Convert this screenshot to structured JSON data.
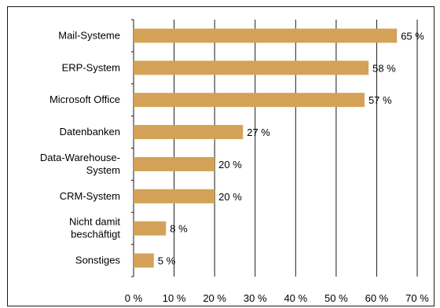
{
  "chart_data": {
    "type": "bar",
    "orientation": "horizontal",
    "categories": [
      [
        "Mail-Systeme"
      ],
      [
        "ERP-System"
      ],
      [
        "Microsoft Office"
      ],
      [
        "Datenbanken"
      ],
      [
        "Data-Warehouse-",
        "System"
      ],
      [
        "CRM-System"
      ],
      [
        "Nicht damit",
        "beschäftigt"
      ],
      [
        "Sonstiges"
      ]
    ],
    "values": [
      65,
      58,
      57,
      27,
      20,
      20,
      8,
      5
    ],
    "data_labels": [
      "65 %",
      "58 %",
      "57 %",
      "27 %",
      "20 %",
      "20 %",
      "8 %",
      "5 %"
    ],
    "x_ticks": [
      "0 %",
      "10 %",
      "20 %",
      "30 %",
      "40 %",
      "50 %",
      "60 %",
      "70 %"
    ],
    "xlim": [
      0,
      70
    ],
    "grid": true,
    "bar_color": "#d4a256",
    "grid_color": "#1a1a1a"
  }
}
